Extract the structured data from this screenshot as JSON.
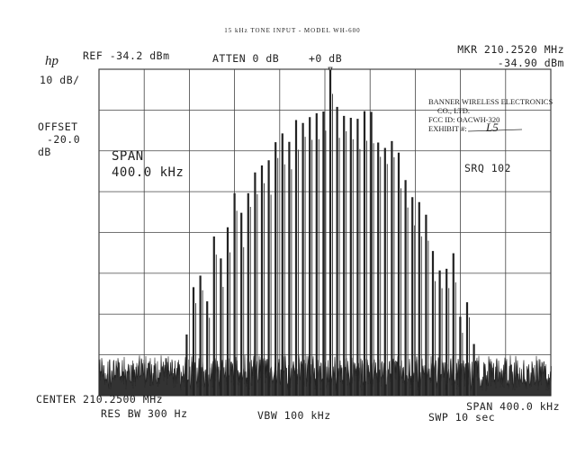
{
  "header": {
    "title": "15 kHz TONE INPUT - MODEL WH-600",
    "logo": "hp",
    "ref": "REF -34.2 dBm",
    "atten": "ATTEN 0 dB",
    "ext": "+0 dB",
    "marker_freq": "MKR 210.2520 MHz",
    "marker_level": "-34.90 dBm"
  },
  "left_panel": {
    "scale": "10 dB/",
    "offset_label": "OFFSET",
    "offset_value": "-20.0",
    "offset_unit": "dB"
  },
  "display": {
    "span_label": "SPAN",
    "span_value": "400.0 kHz",
    "srq": "SRQ 102"
  },
  "stamp": {
    "company": "BANNER WIRELESS ELECTRONICS",
    "company2": "CO., LTD.",
    "fcc_id": "FCC ID: OACWH-320",
    "exhibit": "EXHIBIT #:",
    "exhibit_no": "L5"
  },
  "footer": {
    "center": "CENTER 210.2500 MHz",
    "span": "SPAN 400.0 kHz",
    "res_bw": "RES BW 300 Hz",
    "vbw": "VBW 100 kHz",
    "swp": "SWP 10 sec"
  }
}
